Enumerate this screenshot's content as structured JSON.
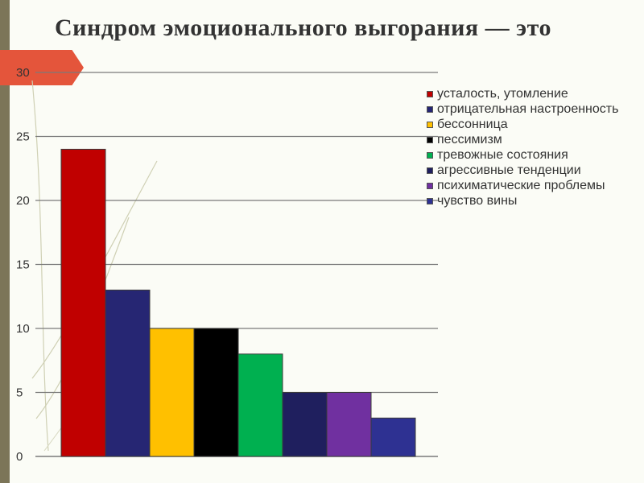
{
  "slide": {
    "title": "Синдром эмоционального выгорания — это"
  },
  "chart_data": {
    "type": "bar",
    "title": "",
    "xlabel": "",
    "ylabel": "",
    "ylim": [
      0,
      30
    ],
    "y_ticks": [
      "0",
      "5",
      "10",
      "15",
      "20",
      "25",
      "30"
    ],
    "grid": true,
    "legend_position": "right",
    "categories": [
      "усталость, утомление",
      "отрицательная настроенность",
      "бессонница",
      "пессимизм",
      "тревожные состояния",
      "агрессивные тенденции",
      "психиматические проблемы",
      "чувство вины"
    ],
    "values": [
      24,
      13,
      10,
      10,
      8,
      5,
      5,
      3
    ],
    "colors": [
      "#c00000",
      "#262673",
      "#ffc000",
      "#000000",
      "#00b050",
      "#1f1f5e",
      "#7030a0",
      "#2e3192"
    ],
    "legend": [
      {
        "label": "усталость, утомление",
        "color": "#c00000"
      },
      {
        "label": "отрицательная настроенность",
        "color": "#262673"
      },
      {
        "label": "бессонница",
        "color": "#ffc000"
      },
      {
        "label": "пессимизм",
        "color": "#000000"
      },
      {
        "label": "тревожные состояния",
        "color": "#00b050"
      },
      {
        "label": "агрессивные тенденции",
        "color": "#1f1f5e"
      },
      {
        "label": "психиматические проблемы",
        "color": "#7030a0"
      },
      {
        "label": "чувство вины",
        "color": "#2e3192"
      }
    ]
  }
}
